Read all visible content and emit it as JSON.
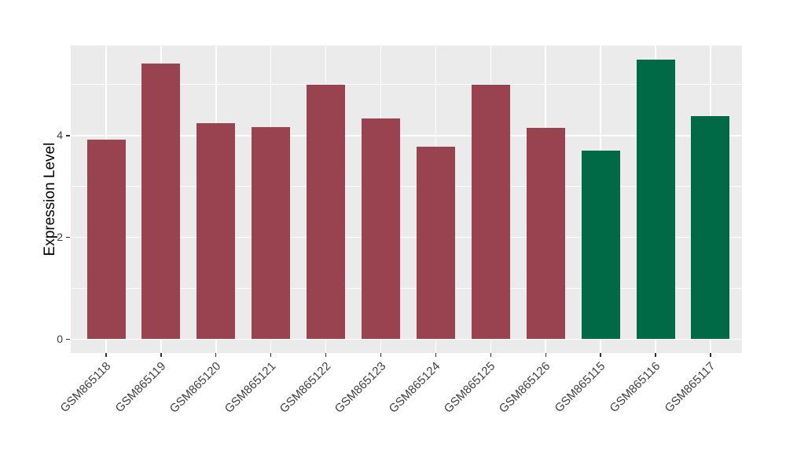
{
  "figure": {
    "background": "#FFFFFF",
    "panel_background": "#EBEBEB",
    "grid_color": "#FFFFFF",
    "axis_text_color": "#404040",
    "tick_mark_color": "#333333",
    "red_bar_color": "#9A4350",
    "green_bar_color": "#006946"
  },
  "chart_data": {
    "type": "bar",
    "title": "",
    "xlabel": "",
    "ylabel": "Expression Level",
    "categories": [
      "GSM865118",
      "GSM865119",
      "GSM865120",
      "GSM865121",
      "GSM865122",
      "GSM865123",
      "GSM865124",
      "GSM865125",
      "GSM865126",
      "GSM865115",
      "GSM865116",
      "GSM865117"
    ],
    "values": [
      3.92,
      5.42,
      4.24,
      4.17,
      5.0,
      4.34,
      3.78,
      5.0,
      4.15,
      3.71,
      5.49,
      4.38
    ],
    "bar_colors": [
      "#9A4350",
      "#9A4350",
      "#9A4350",
      "#9A4350",
      "#9A4350",
      "#9A4350",
      "#9A4350",
      "#9A4350",
      "#9A4350",
      "#006946",
      "#006946",
      "#006946"
    ],
    "ytick_labels": [
      "0",
      "2",
      "4"
    ],
    "ytick_values": [
      0,
      2,
      4
    ],
    "ytick_minor_values": [
      1,
      3,
      5
    ],
    "ylim": [
      -0.27,
      5.77
    ],
    "grid": "major+minor horizontal white, vertical major at category centers",
    "legend": "none",
    "x_label_rotation_deg": 45
  }
}
